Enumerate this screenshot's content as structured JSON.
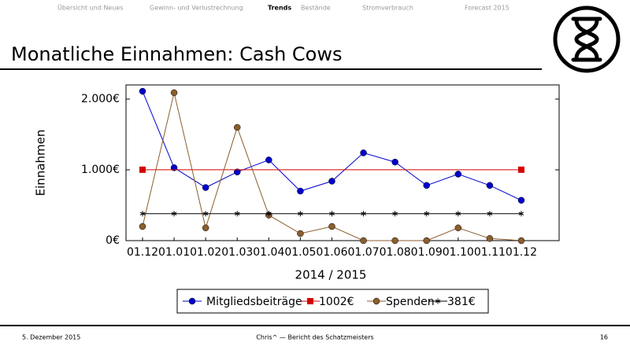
{
  "nav": [
    "Übersicht und Neues",
    "Gewinn- und Verlustrechnung",
    "Trends",
    "Bestände",
    "Stromverbrauch",
    "Forecast 2015"
  ],
  "nav_active": 2,
  "slide_title": "Monatliche Einnahmen: Cash Cows",
  "footer": {
    "date": "5. Dezember 2015",
    "center": "Chris^ — Bericht des Schatzmeisters",
    "page": "16"
  },
  "chart_data": {
    "type": "line",
    "xlabel": "2014 / 2015",
    "ylabel": "Einnahmen",
    "categories": [
      "01.12",
      "01.01",
      "01.02",
      "01.03",
      "01.04",
      "01.05",
      "01.06",
      "01.07",
      "01.08",
      "01.09",
      "01.10",
      "01.11",
      "01.12"
    ],
    "series": [
      {
        "name": "Mitgliedsbeiträge",
        "color": "#0000cc",
        "marker": "circle",
        "values": [
          2110,
          1030,
          750,
          970,
          1140,
          700,
          840,
          1240,
          1110,
          780,
          940,
          780,
          570
        ]
      },
      {
        "name": "1002€",
        "color": "#d40000",
        "marker": "square",
        "marker_at": "ends",
        "values": [
          1002,
          1002,
          1002,
          1002,
          1002,
          1002,
          1002,
          1002,
          1002,
          1002,
          1002,
          1002,
          1002
        ]
      },
      {
        "name": "Spenden",
        "color": "#8b5e2e",
        "marker": "circle",
        "values": [
          200,
          2090,
          180,
          1600,
          360,
          100,
          200,
          0,
          0,
          0,
          180,
          30,
          0
        ]
      },
      {
        "name": "381€",
        "color": "#000000",
        "marker": "star",
        "values": [
          381,
          381,
          381,
          381,
          381,
          381,
          381,
          381,
          381,
          381,
          381,
          381,
          381
        ]
      }
    ],
    "ylim": [
      0,
      2200
    ],
    "yticks": [
      {
        "value": 0,
        "label": "0€"
      },
      {
        "value": 1000,
        "label": "1.000€"
      },
      {
        "value": 2000,
        "label": "2.000€"
      }
    ],
    "legend": "bottom"
  }
}
